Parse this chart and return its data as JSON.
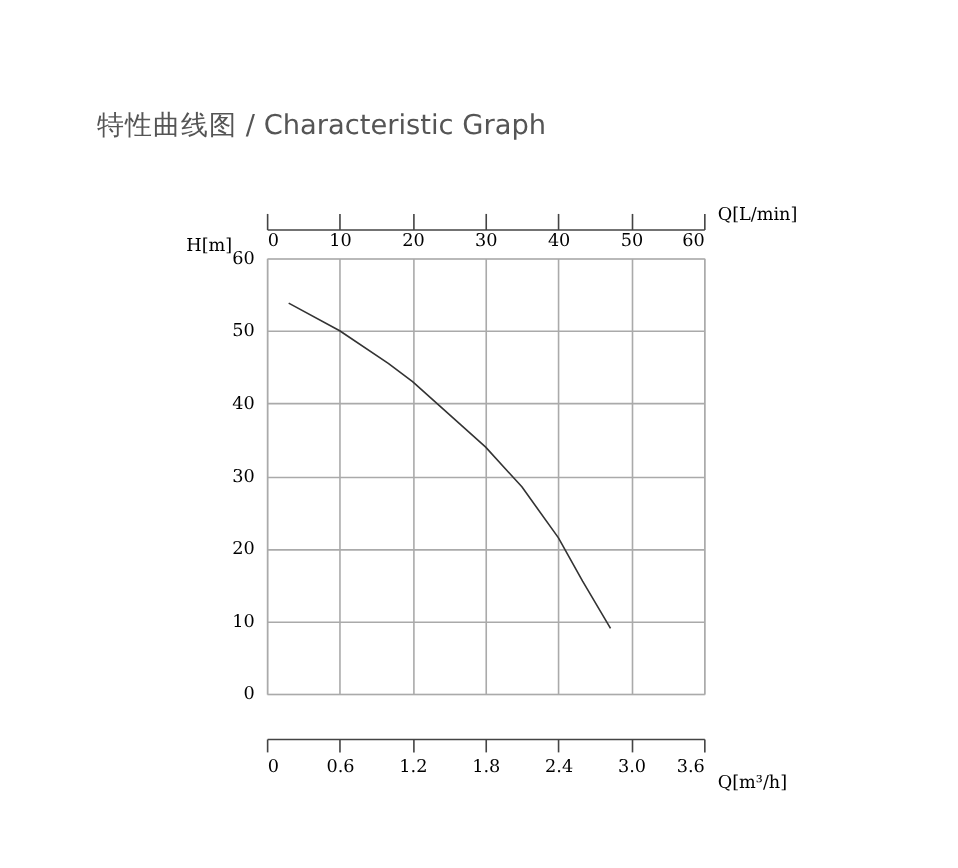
{
  "chart_data": {
    "type": "line",
    "title": "特性曲线图 / Characteristic Graph",
    "xlabel": "Q[m³/h]",
    "ylabel": "H[m]",
    "x2label": "Q[L/min]",
    "xlim": [
      0,
      3.6
    ],
    "xticks": [
      0,
      0.6,
      1.2,
      1.8,
      2.4,
      {
        "value": 3,
        "label": "3.0"
      },
      3.6
    ],
    "x2lim": [
      0,
      60
    ],
    "x2ticks": [
      0,
      10,
      20,
      30,
      40,
      50,
      60
    ],
    "ylim": [
      0,
      60
    ],
    "yticks": [
      0,
      10,
      20,
      30,
      40,
      50,
      60
    ],
    "grid": true,
    "line_style": "solid",
    "series": [
      {
        "color": "#333333",
        "x": [
          0.18,
          0.6,
          1.0,
          1.2,
          1.6,
          1.8,
          2.1,
          2.4,
          2.6,
          2.83
        ],
        "values": [
          53.8,
          50,
          45.5,
          43,
          37,
          34,
          28.5,
          21.5,
          15.5,
          9
        ]
      }
    ]
  }
}
